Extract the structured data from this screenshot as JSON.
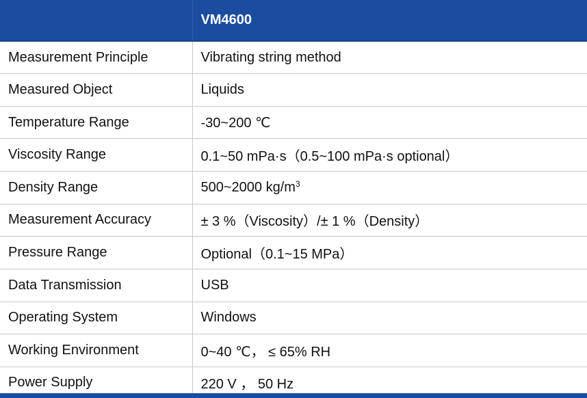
{
  "table": {
    "header": {
      "blank": "",
      "model": "VM4600"
    },
    "rows": [
      {
        "label": "Measurement Principle",
        "value": "Vibrating string method"
      },
      {
        "label": "Measured Object",
        "value": "Liquids"
      },
      {
        "label": "Temperature Range",
        "value": "-30~200 ℃"
      },
      {
        "label": "Viscosity Range",
        "value": "0.1~50 mPa·s（0.5~100 mPa·s optional）"
      },
      {
        "label": "Density Range",
        "value": "500~2000 kg/m",
        "value_sup": "3"
      },
      {
        "label": "Measurement Accuracy",
        "value": "± 3 %（Viscosity）/± 1 %（Density）"
      },
      {
        "label": "Pressure Range",
        "value": "Optional（0.1~15 MPa）"
      },
      {
        "label": "Data Transmission",
        "value": "USB"
      },
      {
        "label": "Operating System",
        "value": "Windows"
      },
      {
        "label": "Working Environment",
        "value": "0~40 ℃， ≤ 65% RH"
      },
      {
        "label": "Power Supply",
        "value": "220 V ， 50 Hz"
      }
    ]
  },
  "colors": {
    "header_background": "#1a4da0",
    "header_text": "#ffffff",
    "grid_lines": "#c8c8c8"
  }
}
